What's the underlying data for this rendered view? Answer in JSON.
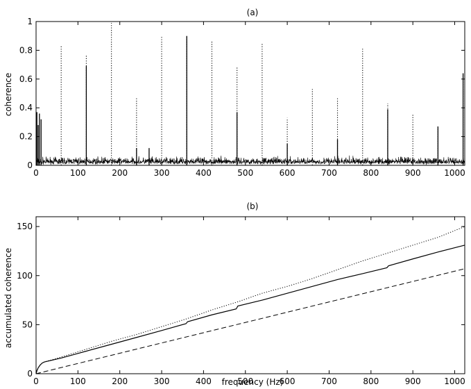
{
  "chart_data": [
    {
      "type": "line",
      "title": "(a)",
      "xlabel": "",
      "ylabel": "coherence",
      "xlim": [
        0,
        1024
      ],
      "ylim": [
        0,
        1
      ],
      "xticks": [
        0,
        100,
        200,
        300,
        400,
        500,
        600,
        700,
        800,
        900,
        1000
      ],
      "yticks": [
        0,
        0.2,
        0.4,
        0.6,
        0.8,
        1
      ],
      "ytick_labels": [
        "0",
        "0.2",
        "0.4",
        "0.6",
        "0.8",
        "1"
      ],
      "noise_floor": 0.03,
      "series": [
        {
          "style": "solid",
          "x": [
            2,
            5,
            8,
            12,
            120,
            240,
            270,
            360,
            480,
            600,
            720,
            840,
            960,
            1020
          ],
          "y": [
            0.37,
            0.28,
            0.36,
            0.32,
            0.69,
            0.12,
            0.12,
            0.9,
            0.37,
            0.15,
            0.18,
            0.39,
            0.27,
            0.64
          ]
        },
        {
          "style": "dotted",
          "x": [
            60,
            120,
            180,
            240,
            300,
            360,
            420,
            480,
            540,
            600,
            660,
            720,
            780,
            840,
            900,
            960,
            1020
          ],
          "y": [
            0.83,
            0.77,
            0.99,
            0.47,
            0.9,
            0.89,
            0.87,
            0.68,
            0.85,
            0.33,
            0.53,
            0.47,
            0.82,
            0.43,
            0.36,
            0.27,
            0.63
          ]
        }
      ]
    },
    {
      "type": "line",
      "title": "(b)",
      "xlabel": "frequency (Hz)",
      "ylabel": "accumulated coherence",
      "xlim": [
        0,
        1024
      ],
      "ylim": [
        0,
        160
      ],
      "xticks": [
        0,
        100,
        200,
        300,
        400,
        500,
        600,
        700,
        800,
        900,
        1000
      ],
      "yticks": [
        0,
        50,
        100,
        150
      ],
      "series": [
        {
          "style": "solid",
          "x": [
            0,
            2,
            5,
            10,
            15,
            20,
            60,
            120,
            180,
            240,
            300,
            358,
            362,
            420,
            478,
            482,
            540,
            600,
            660,
            720,
            780,
            838,
            842,
            900,
            960,
            1024
          ],
          "y": [
            0,
            3,
            6,
            9,
            11,
            12,
            16,
            23,
            30,
            37,
            44,
            51,
            53,
            60,
            66,
            69,
            75,
            82,
            89,
            96,
            102,
            108,
            110,
            117,
            124,
            131
          ]
        },
        {
          "style": "dotted",
          "x": [
            0,
            2,
            5,
            10,
            15,
            20,
            60,
            120,
            180,
            240,
            300,
            360,
            420,
            480,
            540,
            600,
            660,
            720,
            780,
            840,
            900,
            960,
            1024
          ],
          "y": [
            0,
            3,
            6,
            9,
            11,
            12,
            17,
            25,
            33,
            40,
            48,
            56,
            65,
            73,
            82,
            89,
            97,
            106,
            115,
            123,
            131,
            139,
            150
          ]
        },
        {
          "style": "dashed",
          "x": [
            0,
            1024
          ],
          "y": [
            0,
            107
          ]
        }
      ]
    }
  ]
}
